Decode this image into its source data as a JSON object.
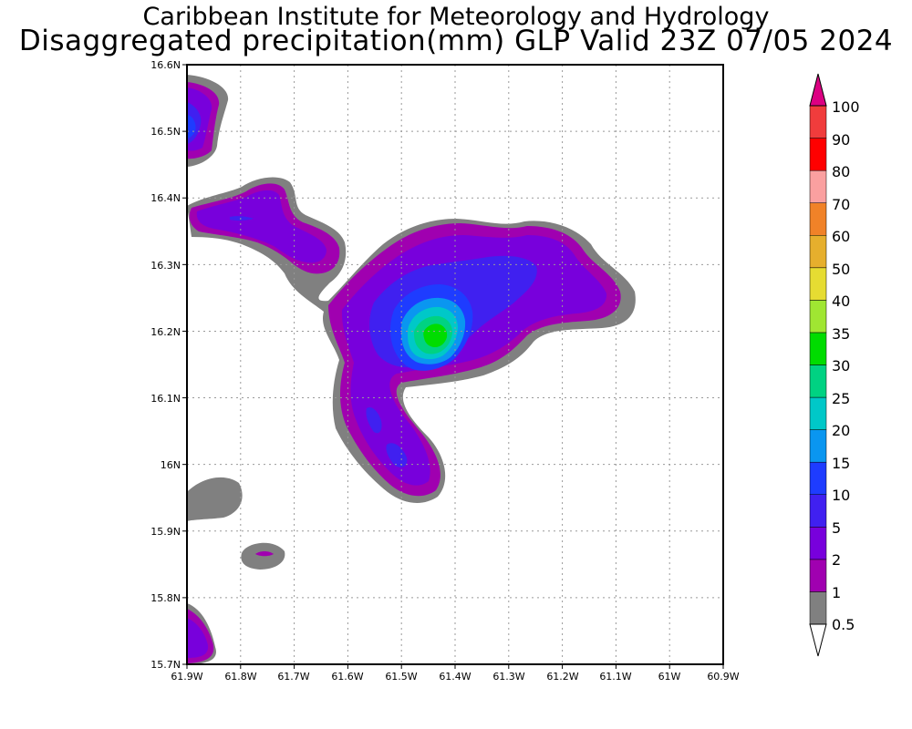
{
  "header": {
    "title_line1": "Caribbean Institute for Meteorology and Hydrology",
    "title_line2": "Disaggregated precipitation(mm) GLP Valid 23Z 07/05 2024"
  },
  "map": {
    "lon_labels": [
      "61.9W",
      "61.8W",
      "61.7W",
      "61.6W",
      "61.5W",
      "61.4W",
      "61.3W",
      "61.2W",
      "61.1W",
      "61W",
      "60.9W"
    ],
    "lat_labels": [
      "16.6N",
      "16.5N",
      "16.4N",
      "16.3N",
      "16.2N",
      "16.1N",
      "16N",
      "15.9N",
      "15.8N",
      "15.7N"
    ],
    "lon_range": [
      -61.9,
      -60.9
    ],
    "lat_range": [
      15.7,
      16.6
    ]
  },
  "legend": {
    "levels": [
      "0.5",
      "1",
      "2",
      "5",
      "10",
      "15",
      "20",
      "25",
      "30",
      "35",
      "40",
      "50",
      "60",
      "70",
      "80",
      "90",
      "100"
    ],
    "colors": [
      "#808080",
      "#a000b0",
      "#7800dc",
      "#4020f0",
      "#1e3cff",
      "#0a96f0",
      "#00c8c8",
      "#00d282",
      "#00dc00",
      "#a0e632",
      "#e6dc32",
      "#e6af2d",
      "#f08228",
      "#faa0a0",
      "#ff0000",
      "#f03c3c",
      "#dc0082"
    ]
  }
}
